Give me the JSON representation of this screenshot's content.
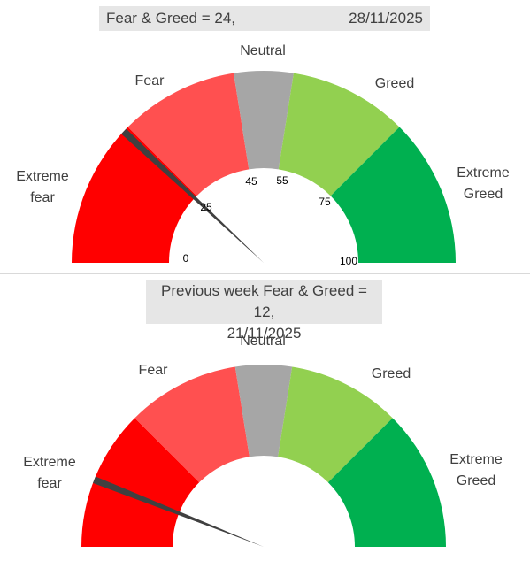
{
  "colors": {
    "extreme_fear": "#ff0000",
    "fear": "#ff5050",
    "neutral": "#a6a6a6",
    "greed": "#92d050",
    "extreme_greed": "#00b050",
    "needle": "#404040",
    "title_bg": "#e6e6e6"
  },
  "current": {
    "title": "Fear & Greed = 24,",
    "date": "28/11/2025",
    "zone_labels": {
      "extreme_fear_line1": "Extreme",
      "extreme_fear_line2": "fear",
      "fear": "Fear",
      "neutral": "Neutral",
      "greed": "Greed",
      "extreme_greed_line1": "Extreme",
      "extreme_greed_line2": "Greed"
    },
    "ticks": [
      "0",
      "25",
      "45",
      "55",
      "75",
      "100"
    ]
  },
  "previous": {
    "title_line1": "Previous week Fear & Greed = 12,",
    "title_line2": "21/11/2025",
    "zone_labels": {
      "extreme_fear_line1": "Extreme",
      "extreme_fear_line2": "fear",
      "fear": "Fear",
      "neutral": "Neutral",
      "greed": "Greed",
      "extreme_greed_line1": "Extreme",
      "extreme_greed_line2": "Greed"
    }
  },
  "chart_data": [
    {
      "type": "gauge",
      "title": "Fear & Greed = 24,",
      "date": "28/11/2025",
      "range": [
        0,
        100
      ],
      "bands": [
        {
          "name": "Extreme fear",
          "from": 0,
          "to": 25
        },
        {
          "name": "Fear",
          "from": 25,
          "to": 45
        },
        {
          "name": "Neutral",
          "from": 45,
          "to": 55
        },
        {
          "name": "Greed",
          "from": 55,
          "to": 75
        },
        {
          "name": "Extreme Greed",
          "from": 75,
          "to": 100
        }
      ],
      "tick_values": [
        0,
        25,
        45,
        55,
        75,
        100
      ],
      "value": 24
    },
    {
      "type": "gauge",
      "title": "Previous week Fear & Greed = 12,",
      "date": "21/11/2025",
      "range": [
        0,
        100
      ],
      "bands": [
        {
          "name": "Extreme fear",
          "from": 0,
          "to": 25
        },
        {
          "name": "Fear",
          "from": 25,
          "to": 45
        },
        {
          "name": "Neutral",
          "from": 45,
          "to": 55
        },
        {
          "name": "Greed",
          "from": 55,
          "to": 75
        },
        {
          "name": "Extreme Greed",
          "from": 75,
          "to": 100
        }
      ],
      "value": 12
    }
  ]
}
